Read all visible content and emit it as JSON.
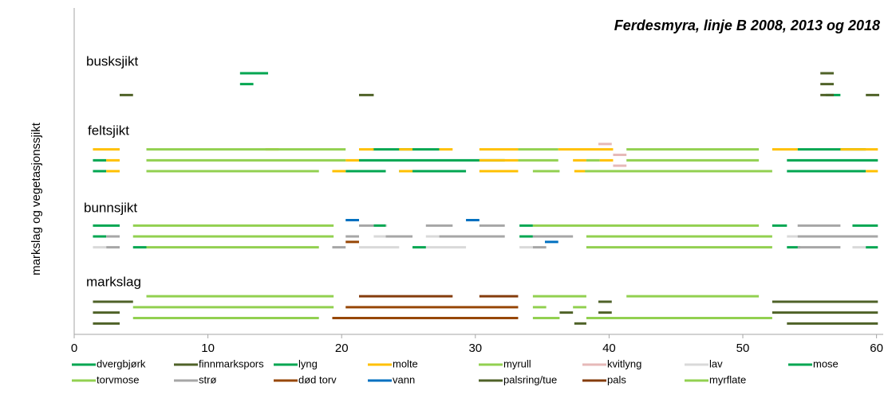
{
  "chart_data": {
    "type": "segments",
    "title": "Ferdesmyra, linje B 2008, 2013 og 2018",
    "y_label": "markslag og vegetasjonssjikt",
    "annotations": [
      "busksjikt",
      "feltsjikt",
      "bunnsjikt",
      "markslag"
    ],
    "xlim": [
      0,
      60.5
    ],
    "xticks": [
      0,
      10,
      20,
      30,
      40,
      50,
      60
    ],
    "ylim": [
      0,
      60
    ],
    "series": [
      {
        "name": "dvergbjørk",
        "color": "#00a651",
        "segments": [
          [
            12.4,
            14.5,
            48
          ],
          [
            12.4,
            13.4,
            46
          ],
          [
            56.2,
            57.3,
            44
          ]
        ]
      },
      {
        "name": "finnmarkspors",
        "color": "#4f6228",
        "segments": [
          [
            3.4,
            4.4,
            44
          ],
          [
            21.3,
            22.4,
            44
          ],
          [
            55.8,
            56.8,
            48
          ],
          [
            55.8,
            56.8,
            46
          ],
          [
            55.8,
            56.8,
            44
          ],
          [
            59.2,
            60.2,
            44
          ]
        ]
      },
      {
        "name": "lyng",
        "color": "#00a651",
        "segments": [
          [
            22.3,
            27.3,
            34
          ],
          [
            54.1,
            59.2,
            34
          ],
          [
            1.4,
            2.4,
            32
          ],
          [
            21.3,
            32.2,
            32
          ],
          [
            53.3,
            60.1,
            32
          ],
          [
            1.4,
            2.4,
            30
          ],
          [
            20.3,
            23.3,
            30
          ],
          [
            24.3,
            29.3,
            30
          ],
          [
            53.3,
            59.2,
            30
          ]
        ]
      },
      {
        "name": "molte",
        "color": "#ffc000",
        "segments": [
          [
            1.4,
            3.4,
            34
          ],
          [
            14.3,
            15.3,
            34
          ],
          [
            21.3,
            22.4,
            34
          ],
          [
            24.3,
            25.3,
            34
          ],
          [
            27.3,
            28.3,
            34
          ],
          [
            30.3,
            33.2,
            34
          ],
          [
            36.2,
            40.3,
            34
          ],
          [
            52.2,
            54.1,
            34
          ],
          [
            57.3,
            60.1,
            34
          ],
          [
            2.4,
            3.4,
            32
          ],
          [
            20.3,
            21.3,
            32
          ],
          [
            30.3,
            33.2,
            32
          ],
          [
            37.3,
            38.3,
            32
          ],
          [
            39.3,
            40.3,
            32
          ],
          [
            2.4,
            3.4,
            30
          ],
          [
            19.3,
            20.3,
            30
          ],
          [
            24.3,
            25.3,
            30
          ],
          [
            30.3,
            33.2,
            30
          ],
          [
            37.4,
            39.2,
            30
          ],
          [
            59.2,
            60.1,
            30
          ]
        ]
      },
      {
        "name": "myrull",
        "color": "#92d050",
        "segments": [
          [
            5.4,
            20.3,
            34
          ],
          [
            33.2,
            36.2,
            34
          ],
          [
            41.3,
            51.2,
            34
          ],
          [
            5.4,
            20.3,
            32
          ],
          [
            33.2,
            36.2,
            32
          ],
          [
            38.3,
            39.3,
            32
          ],
          [
            41.3,
            51.2,
            32
          ],
          [
            5.4,
            18.3,
            30
          ],
          [
            34.3,
            36.3,
            30
          ],
          [
            38.2,
            52.2,
            30
          ]
        ]
      },
      {
        "name": "kvitlyng",
        "color": "#e6b9b8",
        "segments": [
          [
            39.2,
            40.2,
            35
          ],
          [
            40.3,
            41.3,
            33
          ],
          [
            40.3,
            41.3,
            31
          ]
        ]
      },
      {
        "name": "lav",
        "color": "#d9d9d9",
        "segments": [
          [
            22.4,
            23.4,
            20
          ],
          [
            22.4,
            24.3,
            18
          ],
          [
            26.3,
            27.3,
            18
          ],
          [
            1.4,
            2.4,
            16
          ],
          [
            21.3,
            24.3,
            16
          ],
          [
            26.3,
            29.3,
            16
          ],
          [
            33.3,
            34.3,
            16
          ],
          [
            53.3,
            54.1,
            18
          ],
          [
            58.2,
            59.2,
            16
          ]
        ]
      },
      {
        "name": "mose",
        "color": "#00a651",
        "segments": [
          [
            1.4,
            3.4,
            20
          ],
          [
            22.4,
            23.3,
            20
          ],
          [
            33.3,
            34.3,
            20
          ],
          [
            52.2,
            53.3,
            20
          ],
          [
            58.2,
            60.1,
            20
          ],
          [
            1.4,
            2.4,
            18
          ],
          [
            33.3,
            34.3,
            18
          ],
          [
            4.4,
            5.4,
            16
          ],
          [
            25.3,
            26.3,
            16
          ],
          [
            53.3,
            54.3,
            16
          ],
          [
            59.2,
            60.1,
            16
          ]
        ]
      },
      {
        "name": "torvmose",
        "color": "#92d050",
        "segments": [
          [
            4.4,
            19.4,
            20
          ],
          [
            34.3,
            51.2,
            20
          ],
          [
            4.4,
            19.4,
            18
          ],
          [
            38.3,
            52.2,
            18
          ],
          [
            5.4,
            18.3,
            16
          ],
          [
            38.3,
            52.2,
            16
          ]
        ]
      },
      {
        "name": "strø",
        "color": "#a6a6a6",
        "segments": [
          [
            21.3,
            22.4,
            20
          ],
          [
            26.3,
            28.3,
            20
          ],
          [
            30.3,
            32.2,
            20
          ],
          [
            54.1,
            57.3,
            20
          ],
          [
            2.4,
            3.4,
            18
          ],
          [
            20.3,
            21.3,
            18
          ],
          [
            23.3,
            25.3,
            18
          ],
          [
            27.3,
            32.2,
            18
          ],
          [
            34.3,
            37.3,
            18
          ],
          [
            54.1,
            60.1,
            18
          ],
          [
            2.4,
            3.4,
            16
          ],
          [
            19.3,
            20.3,
            16
          ],
          [
            34.3,
            35.3,
            16
          ],
          [
            54.1,
            57.3,
            16
          ]
        ]
      },
      {
        "name": "død torv",
        "color": "#974706",
        "segments": [
          [
            20.3,
            21.3,
            17
          ],
          [
            20.3,
            33.2,
            5
          ],
          [
            19.3,
            33.2,
            3
          ]
        ]
      },
      {
        "name": "vann",
        "color": "#0070c0",
        "segments": [
          [
            20.3,
            21.3,
            21
          ],
          [
            29.3,
            30.3,
            21
          ],
          [
            35.2,
            36.2,
            17
          ]
        ]
      },
      {
        "name": "palsring/tue",
        "color": "#4f6228",
        "segments": [
          [
            1.4,
            4.4,
            6
          ],
          [
            39.2,
            40.2,
            6
          ],
          [
            52.2,
            60.1,
            6
          ],
          [
            1.4,
            3.4,
            4
          ],
          [
            36.3,
            37.3,
            4
          ],
          [
            39.2,
            40.2,
            4
          ],
          [
            52.2,
            60.1,
            4
          ],
          [
            1.4,
            3.4,
            2
          ],
          [
            37.4,
            38.3,
            2
          ],
          [
            53.3,
            60.1,
            2
          ]
        ]
      },
      {
        "name": "pals",
        "color": "#843c0c",
        "segments": [
          [
            21.3,
            28.3,
            7
          ],
          [
            30.3,
            33.2,
            7
          ]
        ]
      },
      {
        "name": "myrflate",
        "color": "#92d050",
        "segments": [
          [
            5.4,
            19.4,
            7
          ],
          [
            34.3,
            38.3,
            7
          ],
          [
            41.3,
            51.2,
            7
          ],
          [
            4.4,
            19.4,
            5
          ],
          [
            34.3,
            35.3,
            5
          ],
          [
            37.3,
            38.3,
            5
          ],
          [
            4.4,
            18.3,
            3
          ],
          [
            34.3,
            36.3,
            3
          ],
          [
            38.3,
            52.2,
            3
          ]
        ]
      }
    ]
  }
}
